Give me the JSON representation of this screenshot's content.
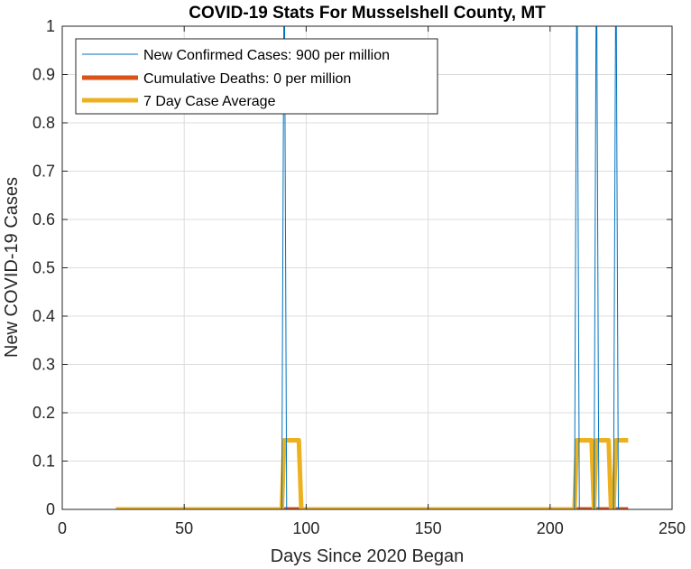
{
  "chart_data": {
    "type": "line",
    "title": "COVID-19 Stats For Musselshell County, MT",
    "xlabel": "Days Since 2020 Began",
    "ylabel": "New COVID-19 Cases",
    "xlim": [
      0,
      250
    ],
    "ylim": [
      0,
      1
    ],
    "xticks": [
      0,
      50,
      100,
      150,
      200,
      250
    ],
    "yticks": [
      0,
      0.1,
      0.2,
      0.3,
      0.4,
      0.5,
      0.6,
      0.7,
      0.8,
      0.9,
      1
    ],
    "grid": true,
    "legend_position": "top-left",
    "series": [
      {
        "name": "New Confirmed Cases: 900 per million",
        "color": "#0072BD",
        "x": [
          22,
          90,
          91,
          92,
          210,
          211,
          212,
          218,
          219,
          220,
          226,
          227,
          228,
          232
        ],
        "y": [
          0,
          0,
          1.2,
          0,
          0,
          1.2,
          0,
          0,
          1.2,
          0,
          0,
          1.2,
          0,
          0
        ]
      },
      {
        "name": "Cumulative Deaths: 0 per million",
        "color": "#D95319",
        "x": [
          22,
          232
        ],
        "y": [
          0,
          0
        ]
      },
      {
        "name": "7 Day Case Average",
        "color": "#EDB120",
        "x": [
          22,
          90,
          91,
          97,
          98,
          210,
          211,
          217,
          218,
          219,
          224,
          225,
          226,
          227,
          232
        ],
        "y": [
          0,
          0,
          0.143,
          0.143,
          0,
          0,
          0.143,
          0.143,
          0,
          0.143,
          0.143,
          0,
          0,
          0.143,
          0.143
        ]
      }
    ]
  }
}
